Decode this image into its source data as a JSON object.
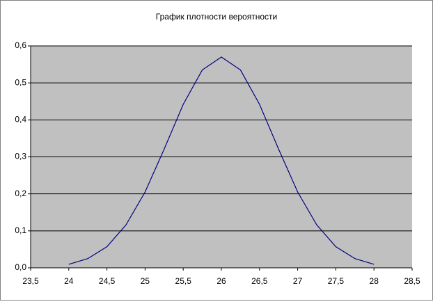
{
  "chart_data": {
    "type": "line",
    "title": "График плотности вероятности",
    "x": [
      24,
      24.25,
      24.5,
      24.75,
      25,
      25.25,
      25.5,
      25.75,
      26,
      26.25,
      26.5,
      26.75,
      27,
      27.25,
      27.5,
      27.75,
      28
    ],
    "series": [
      {
        "color": "#000080",
        "values": [
          0.0096,
          0.025,
          0.057,
          0.116,
          0.205,
          0.321,
          0.442,
          0.535,
          0.57,
          0.535,
          0.442,
          0.321,
          0.205,
          0.116,
          0.057,
          0.025,
          0.0096
        ]
      }
    ],
    "xlim": [
      23.5,
      28.5
    ],
    "xticks": [
      {
        "value": 23.5,
        "label": "23,5"
      },
      24,
      {
        "value": 24.5,
        "label": "24,5"
      },
      25,
      {
        "value": 25.5,
        "label": "25,5"
      },
      26,
      {
        "value": 26.5,
        "label": "26,5"
      },
      27,
      {
        "value": 27.5,
        "label": "27,5"
      },
      28,
      {
        "value": 28.5,
        "label": "28,5"
      }
    ],
    "ylim": [
      0,
      0.6
    ],
    "yticks": [
      {
        "value": 0,
        "label": "0,0"
      },
      {
        "value": 0.1,
        "label": "0,1"
      },
      {
        "value": 0.2,
        "label": "0,2"
      },
      {
        "value": 0.3,
        "label": "0,3"
      },
      {
        "value": 0.4,
        "label": "0,4"
      },
      {
        "value": 0.5,
        "label": "0,5"
      },
      {
        "value": 0.6,
        "label": "0,6"
      }
    ],
    "grid": true,
    "plot_background": "#c0c0c0"
  }
}
